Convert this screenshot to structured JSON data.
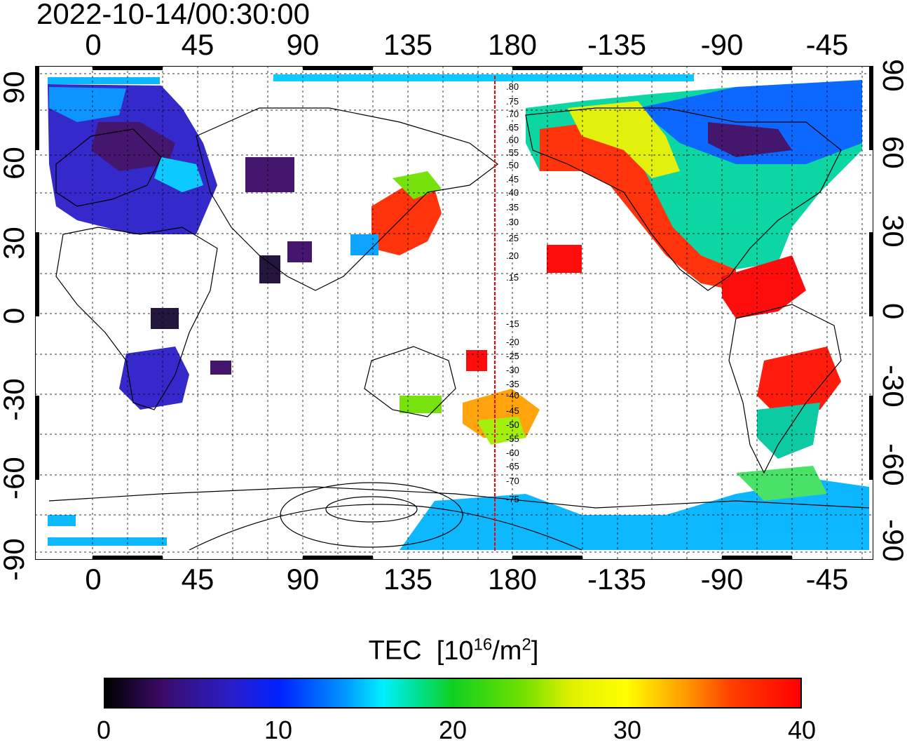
{
  "timestamp": "2022-10-14/00:30:00",
  "longitude_ticks": [
    "0",
    "45",
    "90",
    "135",
    "180",
    "-135",
    "-90",
    "-45"
  ],
  "latitude_ticks": [
    "90",
    "60",
    "30",
    "0",
    "-30",
    "-60",
    "-90"
  ],
  "contour_labels": [
    ".80",
    ".75",
    ".70",
    ".65",
    ".60",
    ".55",
    ".50",
    ".45",
    ".40",
    ".35",
    ".30",
    ".25",
    ".20",
    ".15",
    "-15",
    "-20",
    "-25",
    "-30",
    "-35",
    "-40",
    "-45",
    "-50",
    "-55",
    "-60",
    "-65",
    "-70",
    "-75"
  ],
  "colorbar": {
    "title": "TEC",
    "unit_base": "[10",
    "unit_exp": "16",
    "unit_mid": "/m",
    "unit_exp2": "2",
    "unit_end": "]",
    "labels": [
      "0",
      "10",
      "20",
      "30",
      "40"
    ],
    "min": 0,
    "max": 40
  },
  "colors": {
    "subsolar_line": "#ff0000",
    "coastline": "#000000",
    "grid": "#000000"
  }
}
